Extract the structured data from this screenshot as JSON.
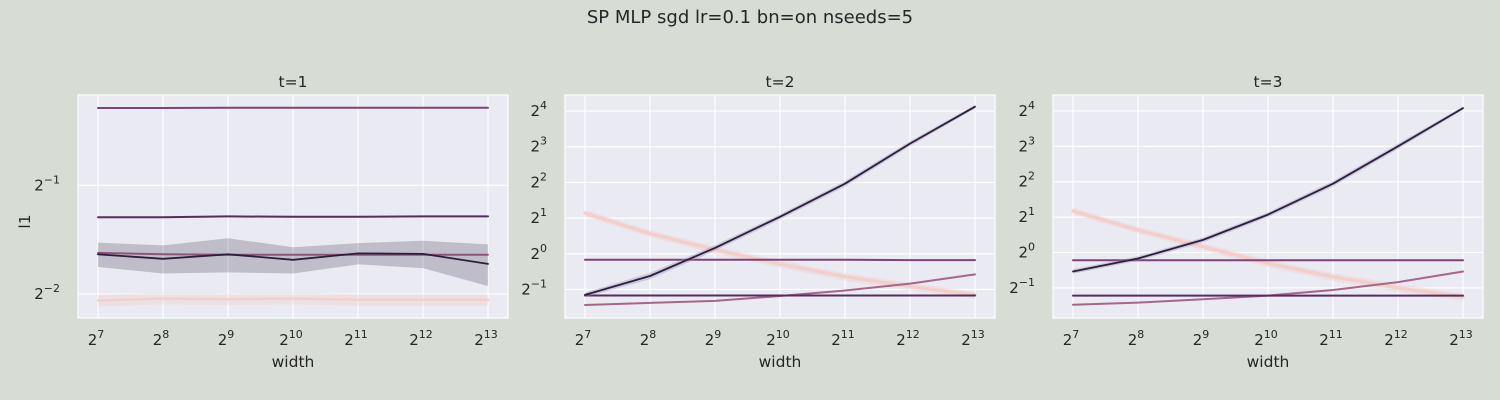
{
  "figure": {
    "title": "SP MLP sgd lr=0.1 bn=on nseeds=5",
    "background": "#d7dcd5",
    "plot_background": "#eaeaf2"
  },
  "chart_data": [
    {
      "type": "line",
      "title": "t=1",
      "xlabel": "width",
      "ylabel": "l1",
      "xscale": "log2",
      "yscale": "log2",
      "x": [
        128,
        256,
        512,
        1024,
        2048,
        4096,
        8192
      ],
      "xticks": [
        {
          "base": "2",
          "exp": "7"
        },
        {
          "base": "2",
          "exp": "8"
        },
        {
          "base": "2",
          "exp": "9"
        },
        {
          "base": "2",
          "exp": "10"
        },
        {
          "base": "2",
          "exp": "11"
        },
        {
          "base": "2",
          "exp": "12"
        },
        {
          "base": "2",
          "exp": "13"
        }
      ],
      "yticks": [
        {
          "base": "2",
          "exp": "−2"
        },
        {
          "base": "2",
          "exp": "−1"
        }
      ],
      "ylim_log2": [
        -2.22,
        -0.17
      ],
      "grid": true,
      "series": [
        {
          "color": "#f2cfcc",
          "width": 2.5,
          "values": [
            0.24,
            0.243,
            0.242,
            0.243,
            0.241,
            0.241,
            0.241
          ],
          "band": [
            0.009,
            0.009,
            0.009,
            0.009,
            0.009,
            0.009,
            0.009
          ]
        },
        {
          "color": "#a8658a",
          "width": 2.0,
          "values": [
            0.325,
            0.322,
            0.321,
            0.321,
            0.321,
            0.321,
            0.321
          ]
        },
        {
          "color": "#7e4378",
          "width": 2.0,
          "values": [
            0.818,
            0.818,
            0.82,
            0.819,
            0.819,
            0.819,
            0.819
          ]
        },
        {
          "color": "#572d5c",
          "width": 2.0,
          "values": [
            0.408,
            0.408,
            0.41,
            0.409,
            0.409,
            0.41,
            0.41
          ]
        },
        {
          "color": "#2d1e3e",
          "width": 1.8,
          "values": [
            0.322,
            0.313,
            0.322,
            0.311,
            0.324,
            0.323,
            0.303
          ],
          "band": [
            0.025,
            0.028,
            0.035,
            0.026,
            0.022,
            0.028,
            0.04
          ],
          "band_color": "#2d1e3e",
          "band_opacity": 0.22
        }
      ]
    },
    {
      "type": "line",
      "title": "t=2",
      "xlabel": "width",
      "ylabel": "",
      "xscale": "log2",
      "yscale": "log2",
      "x": [
        128,
        256,
        512,
        1024,
        2048,
        4096,
        8192
      ],
      "xticks": [
        {
          "base": "2",
          "exp": "7"
        },
        {
          "base": "2",
          "exp": "8"
        },
        {
          "base": "2",
          "exp": "9"
        },
        {
          "base": "2",
          "exp": "10"
        },
        {
          "base": "2",
          "exp": "11"
        },
        {
          "base": "2",
          "exp": "12"
        },
        {
          "base": "2",
          "exp": "13"
        }
      ],
      "yticks": [
        {
          "base": "2",
          "exp": "−1"
        },
        {
          "base": "2",
          "exp": "0"
        },
        {
          "base": "2",
          "exp": "1"
        },
        {
          "base": "2",
          "exp": "2"
        },
        {
          "base": "2",
          "exp": "3"
        },
        {
          "base": "2",
          "exp": "4"
        }
      ],
      "ylim_log2": [
        -1.8,
        4.45
      ],
      "grid": true,
      "series": [
        {
          "color": "#f2cfcc",
          "width": 3.5,
          "values": [
            2.2,
            1.48,
            1.08,
            0.82,
            0.64,
            0.53,
            0.45
          ],
          "band": [
            0.15,
            0.1,
            0.08,
            0.06,
            0.05,
            0.04,
            0.03
          ]
        },
        {
          "color": "#a8658a",
          "width": 2.0,
          "values": [
            0.37,
            0.385,
            0.4,
            0.44,
            0.49,
            0.56,
            0.67
          ]
        },
        {
          "color": "#7e4378",
          "width": 2.0,
          "values": [
            0.89,
            0.89,
            0.89,
            0.89,
            0.89,
            0.885,
            0.885
          ]
        },
        {
          "color": "#572d5c",
          "width": 2.0,
          "values": [
            0.445,
            0.445,
            0.445,
            0.445,
            0.445,
            0.445,
            0.445
          ]
        },
        {
          "color": "#2d1e3e",
          "width": 1.8,
          "values": [
            0.45,
            0.65,
            1.12,
            2.05,
            3.9,
            8.5,
            17.4
          ],
          "band": [
            0.02,
            0.04,
            0.06,
            0.1,
            0.2,
            0.4,
            0.6
          ],
          "band_color": "#8e8ab0",
          "band_opacity": 0.35
        }
      ]
    },
    {
      "type": "line",
      "title": "t=3",
      "xlabel": "width",
      "ylabel": "",
      "xscale": "log2",
      "yscale": "log2",
      "x": [
        128,
        256,
        512,
        1024,
        2048,
        4096,
        8192
      ],
      "xticks": [
        {
          "base": "2",
          "exp": "7"
        },
        {
          "base": "2",
          "exp": "8"
        },
        {
          "base": "2",
          "exp": "9"
        },
        {
          "base": "2",
          "exp": "10"
        },
        {
          "base": "2",
          "exp": "11"
        },
        {
          "base": "2",
          "exp": "12"
        },
        {
          "base": "2",
          "exp": "13"
        }
      ],
      "yticks": [
        {
          "base": "2",
          "exp": "−1"
        },
        {
          "base": "2",
          "exp": "0"
        },
        {
          "base": "2",
          "exp": "1"
        },
        {
          "base": "2",
          "exp": "2"
        },
        {
          "base": "2",
          "exp": "3"
        },
        {
          "base": "2",
          "exp": "4"
        }
      ],
      "ylim_log2": [
        -1.85,
        4.45
      ],
      "grid": true,
      "series": [
        {
          "color": "#f2cfcc",
          "width": 3.5,
          "values": [
            2.25,
            1.55,
            1.12,
            0.81,
            0.62,
            0.5,
            0.42
          ],
          "band": [
            0.15,
            0.1,
            0.08,
            0.06,
            0.05,
            0.04,
            0.03
          ]
        },
        {
          "color": "#a8658a",
          "width": 2.0,
          "values": [
            0.36,
            0.375,
            0.4,
            0.43,
            0.48,
            0.56,
            0.69
          ]
        },
        {
          "color": "#7e4378",
          "width": 2.0,
          "values": [
            0.86,
            0.86,
            0.86,
            0.86,
            0.86,
            0.86,
            0.86
          ]
        },
        {
          "color": "#572d5c",
          "width": 2.0,
          "values": [
            0.43,
            0.43,
            0.43,
            0.43,
            0.43,
            0.43,
            0.43
          ]
        },
        {
          "color": "#2d1e3e",
          "width": 1.8,
          "values": [
            0.69,
            0.89,
            1.28,
            2.1,
            3.85,
            8.0,
            16.9
          ],
          "band": [
            0.03,
            0.04,
            0.06,
            0.1,
            0.2,
            0.4,
            0.6
          ],
          "band_color": "#8e8ab0",
          "band_opacity": 0.35
        }
      ]
    }
  ]
}
